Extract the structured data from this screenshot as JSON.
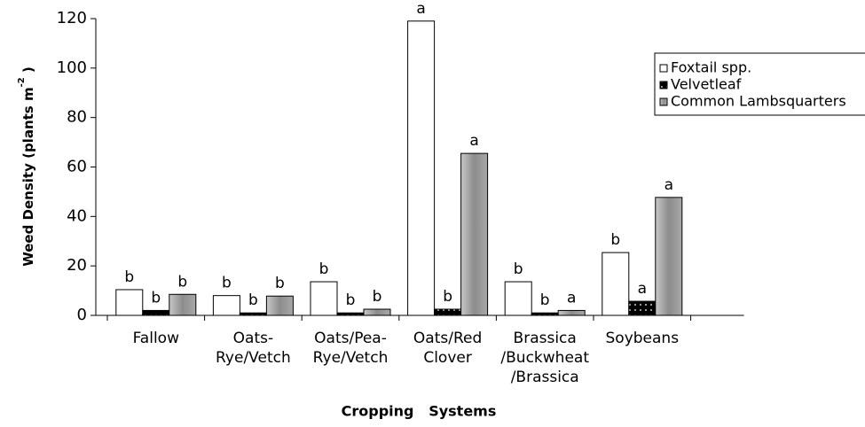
{
  "chart_data": {
    "type": "bar",
    "ylabel_parts": [
      "Weed Density (plants m",
      "-2",
      " )"
    ],
    "xlabel": "Cropping   Systems",
    "categories": [
      [
        "Fallow"
      ],
      [
        "Oats-",
        "Rye/Vetch"
      ],
      [
        "Oats/Pea-",
        "Rye/Vetch"
      ],
      [
        "Oats/Red",
        "Clover"
      ],
      [
        "Brassica",
        "/Buckwheat",
        "/Brassica"
      ],
      [
        "Soybeans"
      ]
    ],
    "series": [
      {
        "name": "Foxtail spp.",
        "color": "#ffffff",
        "values": [
          10.4,
          8,
          13.6,
          119,
          13.6,
          25.4
        ],
        "letters": [
          "b",
          "b",
          "b",
          "a",
          "b",
          "b"
        ]
      },
      {
        "name": "Velvetleaf",
        "color": "#000000",
        "values": [
          2,
          1,
          1,
          2.5,
          1,
          5.7
        ],
        "letters": [
          "b",
          "b",
          "b",
          "b",
          "b",
          "a"
        ]
      },
      {
        "name": "Common Lambsquarters",
        "color": "#999999",
        "values": [
          8.5,
          7.8,
          2.5,
          65.5,
          2,
          47.7
        ],
        "letters": [
          "b",
          "b",
          "b",
          "a",
          "a",
          "a"
        ]
      }
    ],
    "ylim": [
      0,
      120
    ],
    "yticks": [
      0,
      20,
      40,
      60,
      80,
      100,
      120
    ],
    "legend": "upper right"
  }
}
